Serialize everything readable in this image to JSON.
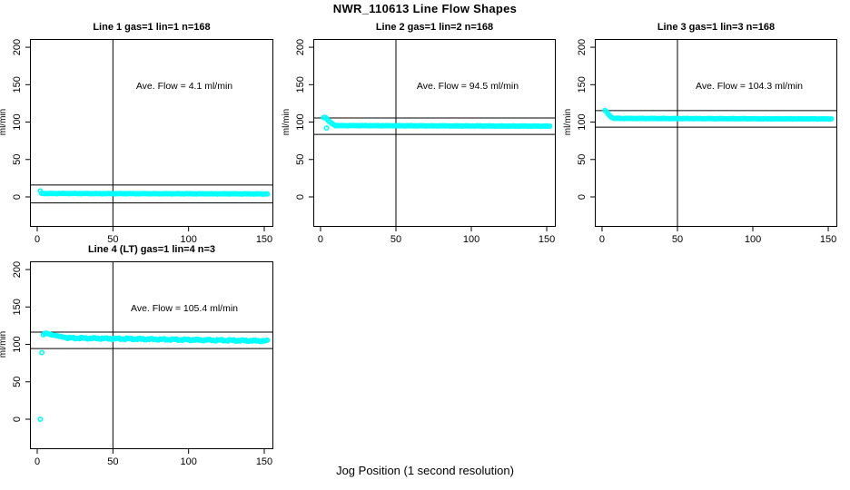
{
  "main_title": "NWR_110613  Line Flow Shapes",
  "x_axis_label": "Jog Position (1 second resolution)",
  "colors": {
    "data_marker": "#00ffff",
    "axis": "#000000",
    "background": "#ffffff"
  },
  "chart_data": {
    "type": "scatter",
    "shared": {
      "xlim": [
        -4.8,
        156
      ],
      "ylim": [
        -40,
        211
      ],
      "x_ticks": [
        0,
        50,
        100,
        150
      ],
      "y_ticks": [
        0,
        50,
        100,
        150,
        200
      ],
      "ylabel": "ml/min",
      "vline_x": 50,
      "marker": "open-circle",
      "grid": false
    },
    "plots": [
      {
        "title": "Line 1 gas=1 lin=1 n=168",
        "ave_flow_ml_min": 4.1,
        "ave_label": "Ave. Flow =  4.1  ml/min",
        "n": 168,
        "annotation_pos": {
          "x": 97,
          "y": 148
        },
        "hlines": [
          16,
          -8
        ],
        "head_points": [
          [
            2,
            8
          ]
        ],
        "band": {
          "x_from": 3,
          "x_to": 152,
          "y_start": 4.6,
          "y_end": 4.0,
          "noise": 0.25
        }
      },
      {
        "title": "Line 2 gas=1 lin=2 n=168",
        "ave_flow_ml_min": 94.5,
        "ave_label": "Ave. Flow =  94.5  ml/min",
        "n": 168,
        "annotation_pos": {
          "x": 97,
          "y": 148
        },
        "hlines": [
          105.5,
          83.5
        ],
        "head_points": [
          [
            2,
            106
          ],
          [
            3,
            106.3
          ],
          [
            4,
            104.8
          ],
          [
            4,
            92
          ],
          [
            5,
            102.5
          ],
          [
            6,
            100.5
          ],
          [
            7,
            99
          ],
          [
            8,
            97.5
          ],
          [
            9,
            96.3
          ]
        ],
        "band": {
          "x_from": 10,
          "x_to": 152,
          "y_start": 95.3,
          "y_end": 94.6,
          "noise": 0.25
        }
      },
      {
        "title": "Line 3 gas=1 lin=3 n=168",
        "ave_flow_ml_min": 104.3,
        "ave_label": "Ave. Flow =  104.3  ml/min",
        "n": 168,
        "annotation_pos": {
          "x": 97,
          "y": 148
        },
        "hlines": [
          115.3,
          93.3
        ],
        "head_points": [
          [
            2,
            115.5
          ],
          [
            3,
            113.8
          ],
          [
            4,
            111
          ],
          [
            5,
            108.5
          ],
          [
            6,
            106.8
          ],
          [
            7,
            105.6
          ]
        ],
        "band": {
          "x_from": 8,
          "x_to": 152,
          "y_start": 104.9,
          "y_end": 104.2,
          "noise": 0.25
        }
      },
      {
        "title": "Line 4 (LT) gas=1 lin=4 n=3",
        "ave_flow_ml_min": 105.4,
        "ave_label": "Ave. Flow =  105.4  ml/min",
        "n": 3,
        "annotation_pos": {
          "x": 97,
          "y": 148
        },
        "hlines": [
          116.4,
          94.4
        ],
        "head_points": [
          [
            2,
            0
          ],
          [
            3,
            89
          ],
          [
            4,
            113
          ],
          [
            5,
            114.5
          ],
          [
            6,
            115
          ],
          [
            7,
            114.3
          ],
          [
            8,
            113.6
          ],
          [
            9,
            113.1
          ],
          [
            10,
            112.7
          ],
          [
            11,
            112.3
          ],
          [
            12,
            111.9
          ],
          [
            13,
            111.5
          ],
          [
            14,
            111.1
          ],
          [
            15,
            110.7
          ],
          [
            16,
            110.3
          ],
          [
            17,
            109.9
          ],
          [
            18,
            109.5
          ],
          [
            19,
            109.1
          ]
        ],
        "band": {
          "x_from": 20,
          "x_to": 152,
          "y_start": 108.6,
          "y_end": 104.6,
          "noise": 1.1
        }
      }
    ]
  }
}
